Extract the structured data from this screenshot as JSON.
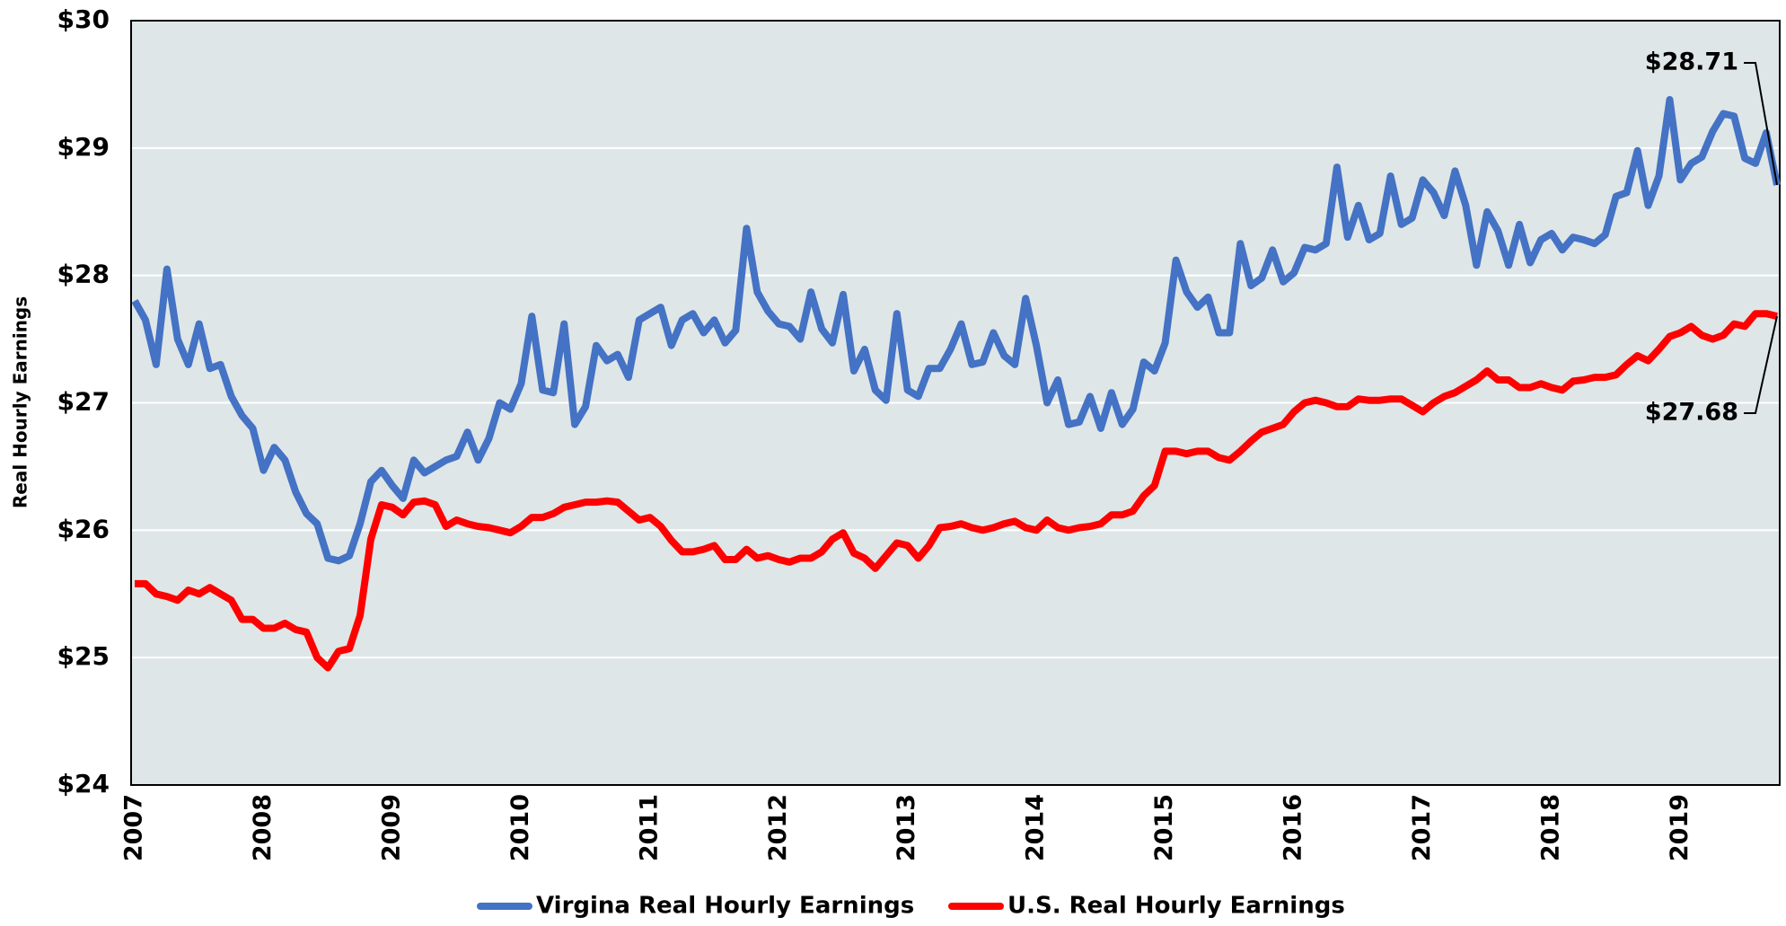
{
  "chart_data": {
    "type": "line",
    "y_label": "Real Hourly Earnings",
    "categories": [
      "2007",
      null,
      null,
      null,
      null,
      null,
      null,
      null,
      null,
      null,
      null,
      null,
      "2008",
      null,
      null,
      null,
      null,
      null,
      null,
      null,
      null,
      null,
      null,
      null,
      "2009",
      null,
      null,
      null,
      null,
      null,
      null,
      null,
      null,
      null,
      null,
      null,
      "2010",
      null,
      null,
      null,
      null,
      null,
      null,
      null,
      null,
      null,
      null,
      null,
      "2011",
      null,
      null,
      null,
      null,
      null,
      null,
      null,
      null,
      null,
      null,
      null,
      "2012",
      null,
      null,
      null,
      null,
      null,
      null,
      null,
      null,
      null,
      null,
      null,
      "2013",
      null,
      null,
      null,
      null,
      null,
      null,
      null,
      null,
      null,
      null,
      null,
      "2014",
      null,
      null,
      null,
      null,
      null,
      null,
      null,
      null,
      null,
      null,
      null,
      "2015",
      null,
      null,
      null,
      null,
      null,
      null,
      null,
      null,
      null,
      null,
      null,
      "2016",
      null,
      null,
      null,
      null,
      null,
      null,
      null,
      null,
      null,
      null,
      null,
      "2017",
      null,
      null,
      null,
      null,
      null,
      null,
      null,
      null,
      null,
      null,
      null,
      "2018",
      null,
      null,
      null,
      null,
      null,
      null,
      null,
      null,
      null,
      null,
      null,
      "2019",
      null,
      null,
      null,
      null,
      null,
      null,
      null,
      null,
      null
    ],
    "series": [
      {
        "name": "Virgina Real Hourly Earnings",
        "color": "#4472c4",
        "values": [
          27.8,
          27.65,
          27.3,
          28.05,
          27.5,
          27.3,
          27.62,
          27.27,
          27.3,
          27.05,
          26.9,
          26.8,
          26.47,
          26.65,
          26.55,
          26.3,
          26.13,
          26.05,
          25.78,
          25.76,
          25.8,
          26.05,
          26.38,
          26.47,
          26.35,
          26.25,
          26.55,
          26.45,
          26.5,
          26.55,
          26.58,
          26.77,
          26.55,
          26.72,
          27.0,
          26.95,
          27.15,
          27.68,
          27.1,
          27.08,
          27.62,
          26.83,
          26.97,
          27.45,
          27.33,
          27.38,
          27.2,
          27.65,
          27.7,
          27.75,
          27.45,
          27.65,
          27.7,
          27.55,
          27.65,
          27.47,
          27.57,
          28.37,
          27.87,
          27.72,
          27.62,
          27.6,
          27.5,
          27.87,
          27.58,
          27.47,
          27.85,
          27.25,
          27.42,
          27.1,
          27.02,
          27.7,
          27.1,
          27.05,
          27.27,
          27.27,
          27.42,
          27.62,
          27.3,
          27.32,
          27.55,
          27.37,
          27.3,
          27.82,
          27.45,
          27.0,
          27.18,
          26.83,
          26.85,
          27.05,
          26.8,
          27.08,
          26.83,
          26.95,
          27.32,
          27.25,
          27.47,
          28.12,
          27.87,
          27.75,
          27.83,
          27.55,
          27.55,
          28.25,
          27.92,
          27.98,
          28.2,
          27.95,
          28.02,
          28.22,
          28.2,
          28.25,
          28.85,
          28.3,
          28.55,
          28.28,
          28.33,
          28.78,
          28.4,
          28.45,
          28.75,
          28.65,
          28.47,
          28.82,
          28.55,
          28.08,
          28.5,
          28.35,
          28.08,
          28.4,
          28.1,
          28.28,
          28.33,
          28.2,
          28.3,
          28.28,
          28.25,
          28.32,
          28.62,
          28.65,
          28.98,
          28.55,
          28.78,
          29.38,
          28.75,
          28.88,
          28.93,
          29.13,
          29.27,
          29.25,
          28.92,
          28.88,
          29.12,
          28.71
        ]
      },
      {
        "name": "U.S. Real Hourly Earnings",
        "color": "#ff0000",
        "values": [
          25.58,
          25.58,
          25.5,
          25.48,
          25.45,
          25.53,
          25.5,
          25.55,
          25.5,
          25.45,
          25.3,
          25.3,
          25.23,
          25.23,
          25.27,
          25.22,
          25.2,
          25.0,
          24.92,
          25.05,
          25.07,
          25.33,
          25.93,
          26.2,
          26.18,
          26.12,
          26.22,
          26.23,
          26.2,
          26.03,
          26.08,
          26.05,
          26.03,
          26.02,
          26.0,
          25.98,
          26.03,
          26.1,
          26.1,
          26.13,
          26.18,
          26.2,
          26.22,
          26.22,
          26.23,
          26.22,
          26.15,
          26.08,
          26.1,
          26.03,
          25.92,
          25.83,
          25.83,
          25.85,
          25.88,
          25.77,
          25.77,
          25.85,
          25.78,
          25.8,
          25.77,
          25.75,
          25.78,
          25.78,
          25.83,
          25.93,
          25.98,
          25.82,
          25.78,
          25.7,
          25.8,
          25.9,
          25.88,
          25.78,
          25.88,
          26.02,
          26.03,
          26.05,
          26.02,
          26.0,
          26.02,
          26.05,
          26.07,
          26.02,
          26.0,
          26.08,
          26.02,
          26.0,
          26.02,
          26.03,
          26.05,
          26.12,
          26.12,
          26.15,
          26.27,
          26.35,
          26.62,
          26.62,
          26.6,
          26.62,
          26.62,
          26.57,
          26.55,
          26.62,
          26.7,
          26.77,
          26.8,
          26.83,
          26.93,
          27.0,
          27.02,
          27.0,
          26.97,
          26.97,
          27.03,
          27.02,
          27.02,
          27.03,
          27.03,
          26.98,
          26.93,
          27.0,
          27.05,
          27.08,
          27.13,
          27.18,
          27.25,
          27.18,
          27.18,
          27.12,
          27.12,
          27.15,
          27.12,
          27.1,
          27.17,
          27.18,
          27.2,
          27.2,
          27.22,
          27.3,
          27.37,
          27.33,
          27.42,
          27.52,
          27.55,
          27.6,
          27.53,
          27.5,
          27.53,
          27.62,
          27.6,
          27.7,
          27.7,
          27.68
        ]
      }
    ],
    "annotations": [
      "$28.71",
      "$27.68"
    ],
    "ylim": [
      24,
      30
    ],
    "yticks": [
      {
        "value": 24,
        "label": "$24"
      },
      {
        "value": 25,
        "label": "$25"
      },
      {
        "value": 26,
        "label": "$26"
      },
      {
        "value": 27,
        "label": "$27"
      },
      {
        "value": 28,
        "label": "$28"
      },
      {
        "value": 29,
        "label": "$29"
      },
      {
        "value": 30,
        "label": "$30"
      }
    ],
    "grid": true,
    "legend": "bottom"
  }
}
